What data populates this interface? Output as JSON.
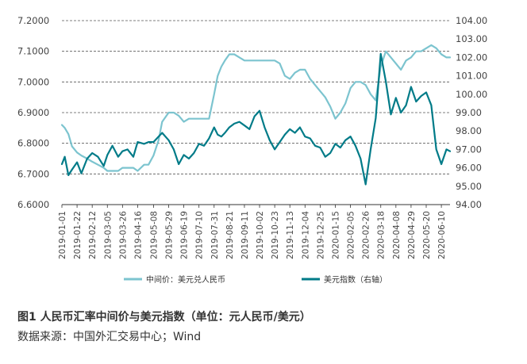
{
  "chart_data": {
    "type": "line",
    "title": "",
    "xlabel": "",
    "ylabel": "",
    "ylim": [
      6.6,
      7.2
    ],
    "y2lim": [
      94.0,
      104.0
    ],
    "yticks": [
      "6.6000",
      "6.7000",
      "6.8000",
      "6.9000",
      "7.0000",
      "7.1000",
      "7.2000"
    ],
    "y2ticks": [
      "94.00",
      "95.00",
      "96.00",
      "97.00",
      "98.00",
      "99.00",
      "100.00",
      "101.00",
      "102.00",
      "103.00",
      "104.00"
    ],
    "xticks": [
      "2019-01-01",
      "2019-01-22",
      "2019-02-12",
      "2019-03-05",
      "2019-03-26",
      "2019-04-16",
      "2019-05-08",
      "2019-05-29",
      "2019-06-19",
      "2019-07-10",
      "2019-07-31",
      "2019-08-21",
      "2019-09-11",
      "2019-10-02",
      "2019-10-23",
      "2019-11-13",
      "2019-12-04",
      "2019-12-25",
      "2020-01-15",
      "2020-02-05",
      "2020-02-26",
      "2020-03-18",
      "2020-04-08",
      "2020-04-29",
      "2020-05-20",
      "2020-06-10"
    ],
    "grid": "horizontal dashed",
    "legend_position": "bottom",
    "series": [
      {
        "name": "中间价：美元兑人民币",
        "axis": "left",
        "color": "#7cc4cf",
        "x": [
          "2019-01-01",
          "2019-01-05",
          "2019-01-10",
          "2019-01-15",
          "2019-01-22",
          "2019-01-28",
          "2019-02-05",
          "2019-02-12",
          "2019-02-20",
          "2019-02-28",
          "2019-03-05",
          "2019-03-12",
          "2019-03-20",
          "2019-03-26",
          "2019-04-02",
          "2019-04-10",
          "2019-04-16",
          "2019-04-25",
          "2019-05-01",
          "2019-05-08",
          "2019-05-15",
          "2019-05-20",
          "2019-05-29",
          "2019-06-05",
          "2019-06-12",
          "2019-06-19",
          "2019-06-26",
          "2019-07-03",
          "2019-07-10",
          "2019-07-17",
          "2019-07-24",
          "2019-07-31",
          "2019-08-05",
          "2019-08-10",
          "2019-08-15",
          "2019-08-21",
          "2019-08-28",
          "2019-09-04",
          "2019-09-11",
          "2019-09-18",
          "2019-09-25",
          "2019-10-02",
          "2019-10-09",
          "2019-10-16",
          "2019-10-23",
          "2019-10-30",
          "2019-11-06",
          "2019-11-13",
          "2019-11-20",
          "2019-11-27",
          "2019-12-04",
          "2019-12-11",
          "2019-12-18",
          "2019-12-25",
          "2020-01-01",
          "2020-01-08",
          "2020-01-15",
          "2020-01-22",
          "2020-01-29",
          "2020-02-05",
          "2020-02-12",
          "2020-02-19",
          "2020-02-26",
          "2020-03-04",
          "2020-03-11",
          "2020-03-18",
          "2020-03-25",
          "2020-04-01",
          "2020-04-08",
          "2020-04-15",
          "2020-04-22",
          "2020-04-29",
          "2020-05-06",
          "2020-05-13",
          "2020-05-20",
          "2020-05-27",
          "2020-06-03",
          "2020-06-10",
          "2020-06-17",
          "2020-06-22"
        ],
        "values": [
          6.86,
          6.85,
          6.83,
          6.79,
          6.77,
          6.76,
          6.75,
          6.74,
          6.73,
          6.72,
          6.71,
          6.71,
          6.71,
          6.72,
          6.72,
          6.72,
          6.71,
          6.73,
          6.73,
          6.76,
          6.81,
          6.87,
          6.9,
          6.9,
          6.89,
          6.87,
          6.88,
          6.88,
          6.88,
          6.88,
          6.88,
          6.96,
          7.02,
          7.05,
          7.07,
          7.09,
          7.09,
          7.08,
          7.07,
          7.07,
          7.07,
          7.07,
          7.07,
          7.07,
          7.07,
          7.06,
          7.02,
          7.01,
          7.03,
          7.04,
          7.04,
          7.01,
          6.99,
          6.97,
          6.95,
          6.92,
          6.88,
          6.9,
          6.93,
          6.98,
          7.0,
          7.0,
          6.99,
          6.96,
          6.94,
          7.05,
          7.1,
          7.08,
          7.06,
          7.04,
          7.07,
          7.08,
          7.1,
          7.1,
          7.11,
          7.12,
          7.11,
          7.09,
          7.08,
          7.08
        ]
      },
      {
        "name": "美元指数（右轴）",
        "axis": "right",
        "color": "#007b88",
        "x": [
          "2019-01-01",
          "2019-01-05",
          "2019-01-10",
          "2019-01-15",
          "2019-01-22",
          "2019-01-28",
          "2019-02-05",
          "2019-02-12",
          "2019-02-20",
          "2019-02-28",
          "2019-03-05",
          "2019-03-12",
          "2019-03-20",
          "2019-03-26",
          "2019-04-02",
          "2019-04-10",
          "2019-04-16",
          "2019-04-25",
          "2019-05-01",
          "2019-05-08",
          "2019-05-15",
          "2019-05-20",
          "2019-05-29",
          "2019-06-05",
          "2019-06-12",
          "2019-06-19",
          "2019-06-26",
          "2019-07-03",
          "2019-07-10",
          "2019-07-17",
          "2019-07-24",
          "2019-07-31",
          "2019-08-05",
          "2019-08-10",
          "2019-08-15",
          "2019-08-21",
          "2019-08-28",
          "2019-09-04",
          "2019-09-11",
          "2019-09-18",
          "2019-09-25",
          "2019-10-02",
          "2019-10-09",
          "2019-10-16",
          "2019-10-23",
          "2019-10-30",
          "2019-11-06",
          "2019-11-13",
          "2019-11-20",
          "2019-11-27",
          "2019-12-04",
          "2019-12-11",
          "2019-12-18",
          "2019-12-25",
          "2020-01-01",
          "2020-01-08",
          "2020-01-15",
          "2020-01-22",
          "2020-01-29",
          "2020-02-05",
          "2020-02-12",
          "2020-02-19",
          "2020-02-26",
          "2020-03-04",
          "2020-03-11",
          "2020-03-18",
          "2020-03-25",
          "2020-04-01",
          "2020-04-08",
          "2020-04-15",
          "2020-04-22",
          "2020-04-29",
          "2020-05-06",
          "2020-05-13",
          "2020-05-20",
          "2020-05-27",
          "2020-06-03",
          "2020-06-10",
          "2020-06-17",
          "2020-06-22"
        ],
        "values": [
          96.2,
          96.6,
          95.6,
          95.9,
          96.3,
          95.7,
          96.5,
          96.8,
          96.6,
          96.1,
          96.7,
          97.2,
          96.6,
          96.9,
          97.0,
          96.6,
          97.4,
          97.3,
          97.4,
          97.4,
          97.7,
          97.9,
          97.5,
          97.0,
          96.2,
          96.7,
          96.5,
          96.8,
          97.3,
          97.2,
          97.6,
          98.2,
          97.8,
          97.7,
          97.9,
          98.2,
          98.4,
          98.5,
          98.3,
          98.1,
          98.8,
          99.1,
          98.2,
          97.5,
          97.0,
          97.4,
          97.8,
          98.1,
          97.9,
          98.2,
          97.7,
          97.6,
          97.2,
          97.1,
          96.6,
          96.8,
          97.3,
          97.1,
          97.5,
          97.7,
          97.2,
          96.5,
          95.1,
          97.0,
          98.7,
          102.2,
          100.7,
          98.9,
          99.8,
          99.0,
          99.4,
          100.4,
          99.6,
          99.9,
          100.1,
          99.4,
          97.0,
          96.2,
          97.0,
          96.9
        ]
      }
    ]
  },
  "caption": {
    "title": "图1  人民币汇率中间价与美元指数（单位：元人民币/美元）",
    "source": "数据来源：中国外汇交易中心；Wind"
  }
}
